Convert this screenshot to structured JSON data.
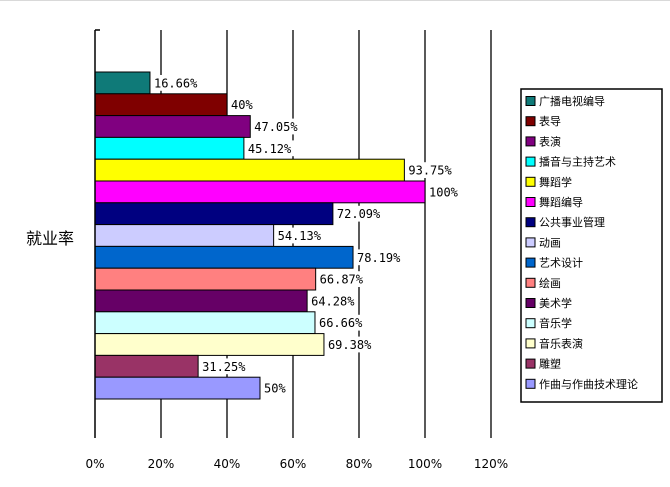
{
  "chart_data": {
    "type": "bar",
    "orientation": "horizontal",
    "ylabel": "就业率",
    "xlabel": "",
    "xlim": [
      0,
      120
    ],
    "x_ticks": [
      "0%",
      "20%",
      "40%",
      "60%",
      "80%",
      "100%",
      "120%"
    ],
    "grid": "vertical gridlines",
    "legend_position": "right",
    "categories": [
      "广播电视编导",
      "表导",
      "表演",
      "播音与主持艺术",
      "舞蹈学",
      "舞蹈编导",
      "公共事业管理",
      "动画",
      "艺术设计",
      "绘画",
      "美术学",
      "音乐学",
      "音乐表演",
      "雕塑",
      "作曲与作曲技术理论"
    ],
    "values": [
      16.66,
      40,
      47.05,
      45.12,
      93.75,
      100,
      72.09,
      54.13,
      78.19,
      66.87,
      64.28,
      66.66,
      69.38,
      31.25,
      50
    ],
    "data_labels": [
      "16.66%",
      "40%",
      "47.05%",
      "45.12%",
      "93.75%",
      "100%",
      "72.09%",
      "54.13%",
      "78.19%",
      "66.87%",
      "64.28%",
      "66.66%",
      "69.38%",
      "31.25%",
      "50%"
    ],
    "colors": [
      "#0f7a78",
      "#7f0000",
      "#800080",
      "#00ffff",
      "#ffff00",
      "#ff00ff",
      "#000080",
      "#ccccff",
      "#0066cc",
      "#ff8080",
      "#660066",
      "#ccffff",
      "#ffffcc",
      "#993366",
      "#9999ff"
    ]
  }
}
